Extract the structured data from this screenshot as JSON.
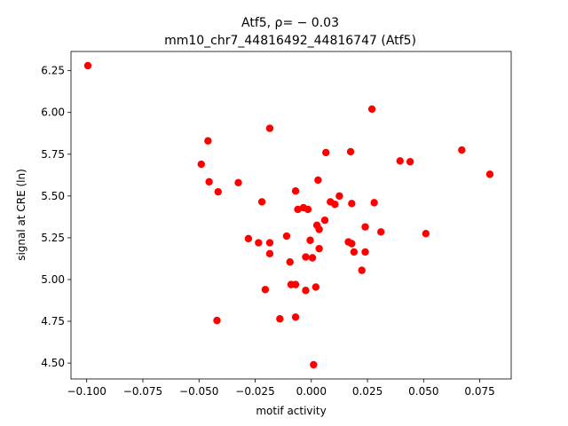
{
  "chart_data": {
    "type": "scatter",
    "title_line1": "Atf5, ρ= − 0.03",
    "title_line2": "mm10_chr7_44816492_44816747 (Atf5)",
    "xlabel": "motif activity",
    "ylabel": "signal at CRE (ln)",
    "xlim": [
      -0.107,
      0.089
    ],
    "ylim": [
      4.405,
      6.365
    ],
    "xticks": [
      -0.1,
      -0.075,
      -0.05,
      -0.025,
      0.0,
      0.025,
      0.05,
      0.075
    ],
    "xtick_labels": [
      "−0.100",
      "−0.075",
      "−0.050",
      "−0.025",
      "0.000",
      "0.025",
      "0.050",
      "0.075"
    ],
    "yticks": [
      4.5,
      4.75,
      5.0,
      5.25,
      5.5,
      5.75,
      6.0,
      6.25
    ],
    "ytick_labels": [
      "4.50",
      "4.75",
      "5.00",
      "5.25",
      "5.50",
      "5.75",
      "6.00",
      "6.25"
    ],
    "marker_color": "#ff0000",
    "grid": false,
    "points": [
      {
        "x": -0.0995,
        "y": 6.28
      },
      {
        "x": -0.049,
        "y": 5.69
      },
      {
        "x": -0.046,
        "y": 5.83
      },
      {
        "x": -0.0455,
        "y": 5.585
      },
      {
        "x": -0.0415,
        "y": 5.525
      },
      {
        "x": -0.042,
        "y": 4.755
      },
      {
        "x": -0.0325,
        "y": 5.58
      },
      {
        "x": -0.028,
        "y": 5.245
      },
      {
        "x": -0.022,
        "y": 5.465
      },
      {
        "x": -0.0185,
        "y": 5.905
      },
      {
        "x": -0.011,
        "y": 5.26
      },
      {
        "x": -0.0235,
        "y": 5.22
      },
      {
        "x": -0.0185,
        "y": 5.22
      },
      {
        "x": -0.0185,
        "y": 5.155
      },
      {
        "x": -0.0205,
        "y": 4.94
      },
      {
        "x": -0.014,
        "y": 4.765
      },
      {
        "x": -0.007,
        "y": 5.53
      },
      {
        "x": -0.006,
        "y": 5.42
      },
      {
        "x": -0.0035,
        "y": 5.43
      },
      {
        "x": -0.0015,
        "y": 5.42
      },
      {
        "x": -0.0095,
        "y": 5.105
      },
      {
        "x": -0.009,
        "y": 4.97
      },
      {
        "x": -0.007,
        "y": 4.97
      },
      {
        "x": -0.007,
        "y": 4.775
      },
      {
        "x": -0.0025,
        "y": 5.135
      },
      {
        "x": -0.0025,
        "y": 4.935
      },
      {
        "x": -0.0005,
        "y": 5.235
      },
      {
        "x": 0.0005,
        "y": 5.13
      },
      {
        "x": 0.002,
        "y": 4.955
      },
      {
        "x": 0.001,
        "y": 4.49
      },
      {
        "x": 0.0025,
        "y": 5.325
      },
      {
        "x": 0.0035,
        "y": 5.3
      },
      {
        "x": 0.0035,
        "y": 5.185
      },
      {
        "x": 0.003,
        "y": 5.595
      },
      {
        "x": 0.006,
        "y": 5.355
      },
      {
        "x": 0.0065,
        "y": 5.76
      },
      {
        "x": 0.0085,
        "y": 5.465
      },
      {
        "x": 0.0105,
        "y": 5.45
      },
      {
        "x": 0.0125,
        "y": 5.5
      },
      {
        "x": 0.0165,
        "y": 5.225
      },
      {
        "x": 0.0175,
        "y": 5.765
      },
      {
        "x": 0.018,
        "y": 5.455
      },
      {
        "x": 0.018,
        "y": 5.215
      },
      {
        "x": 0.019,
        "y": 5.165
      },
      {
        "x": 0.0225,
        "y": 5.055
      },
      {
        "x": 0.024,
        "y": 5.315
      },
      {
        "x": 0.024,
        "y": 5.165
      },
      {
        "x": 0.027,
        "y": 6.02
      },
      {
        "x": 0.028,
        "y": 5.46
      },
      {
        "x": 0.031,
        "y": 5.285
      },
      {
        "x": 0.0395,
        "y": 5.71
      },
      {
        "x": 0.044,
        "y": 5.705
      },
      {
        "x": 0.051,
        "y": 5.275
      },
      {
        "x": 0.067,
        "y": 5.775
      },
      {
        "x": 0.0795,
        "y": 5.63
      }
    ]
  }
}
